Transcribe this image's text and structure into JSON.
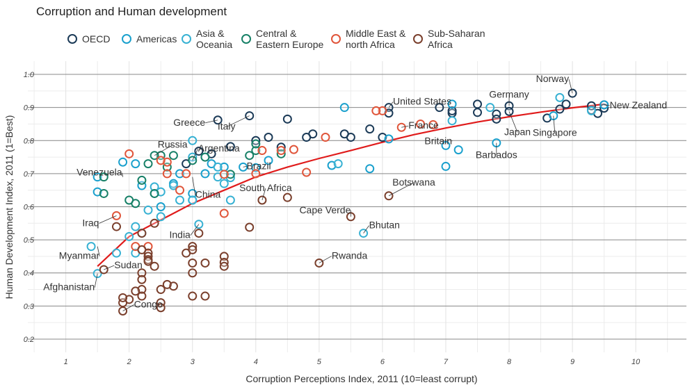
{
  "chart_data": {
    "type": "scatter",
    "title": "Corruption and Human development",
    "xlabel": "Corruption Perceptions Index, 2011 (10=least corrupt)",
    "ylabel": "Human Development Index, 2011 (1=Best)",
    "xlim": [
      0.4,
      10.8
    ],
    "ylim": [
      0.16,
      1.04
    ],
    "x_ticks": [
      1,
      2,
      3,
      4,
      5,
      6,
      7,
      8,
      9,
      10
    ],
    "y_ticks": [
      0.2,
      0.3,
      0.4,
      0.5,
      0.6,
      0.7,
      0.8,
      0.9,
      1.0
    ],
    "y_tick_labels": [
      "0.2",
      "0.3",
      "0.4",
      "0.5",
      "0.6",
      "0.7",
      "0.8",
      "0.9",
      "1.0"
    ],
    "grid": true,
    "legend_position": "top",
    "legend": [
      {
        "key": "OECD",
        "label": [
          "OECD"
        ],
        "color": "#1b3a57"
      },
      {
        "key": "Americas",
        "label": [
          "Americas"
        ],
        "color": "#1aa0cd"
      },
      {
        "key": "Asia",
        "label": [
          "Asia &",
          "Oceania"
        ],
        "color": "#37b1d3"
      },
      {
        "key": "CEE",
        "label": [
          "Central &",
          "Eastern Europe"
        ],
        "color": "#178067"
      },
      {
        "key": "MENA",
        "label": [
          "Middle East &",
          "north Africa"
        ],
        "color": "#e0553a"
      },
      {
        "key": "SSA",
        "label": [
          "Sub-Saharan",
          "Africa"
        ],
        "color": "#7a3f2c"
      }
    ],
    "trend_line": {
      "color": "#e01b1b",
      "points": [
        [
          1.5,
          0.42
        ],
        [
          2,
          0.51
        ],
        [
          2.5,
          0.56
        ],
        [
          3,
          0.61
        ],
        [
          3.5,
          0.65
        ],
        [
          4,
          0.69
        ],
        [
          4.5,
          0.72
        ],
        [
          5,
          0.746
        ],
        [
          5.5,
          0.77
        ],
        [
          6,
          0.795
        ],
        [
          6.5,
          0.818
        ],
        [
          7,
          0.838
        ],
        [
          7.5,
          0.856
        ],
        [
          8,
          0.872
        ],
        [
          8.5,
          0.886
        ],
        [
          9,
          0.899
        ],
        [
          9.5,
          0.91
        ]
      ]
    },
    "series": [
      {
        "name": "OECD",
        "points": [
          [
            9.5,
            0.908
          ],
          [
            9.5,
            0.898
          ],
          [
            9.4,
            0.882
          ],
          [
            9.3,
            0.892
          ],
          [
            9.0,
            0.943
          ],
          [
            9.3,
            0.905
          ],
          [
            8.9,
            0.91
          ],
          [
            8.8,
            0.895
          ],
          [
            8.6,
            0.868
          ],
          [
            8.0,
            0.905
          ],
          [
            8.0,
            0.888
          ],
          [
            7.8,
            0.88
          ],
          [
            7.8,
            0.865
          ],
          [
            7.5,
            0.91
          ],
          [
            7.5,
            0.885
          ],
          [
            7.1,
            0.883
          ],
          [
            7.1,
            0.89
          ],
          [
            6.9,
            0.9
          ],
          [
            6.1,
            0.9
          ],
          [
            6.1,
            0.883
          ],
          [
            6.0,
            0.81
          ],
          [
            5.8,
            0.835
          ],
          [
            5.5,
            0.81
          ],
          [
            5.4,
            0.82
          ],
          [
            4.9,
            0.82
          ],
          [
            4.8,
            0.81
          ],
          [
            4.5,
            0.865
          ],
          [
            4.4,
            0.78
          ],
          [
            4.2,
            0.81
          ],
          [
            4.0,
            0.8
          ],
          [
            3.9,
            0.875
          ],
          [
            3.6,
            0.782
          ],
          [
            3.4,
            0.862
          ],
          [
            3.3,
            0.76
          ],
          [
            3.1,
            0.768
          ],
          [
            2.9,
            0.73
          ]
        ]
      },
      {
        "name": "Americas",
        "points": [
          [
            9.5,
            0.908
          ],
          [
            8.7,
            0.875
          ],
          [
            7.8,
            0.793
          ],
          [
            7.2,
            0.772
          ],
          [
            7.0,
            0.785
          ],
          [
            7.0,
            0.722
          ],
          [
            7.1,
            0.91
          ],
          [
            6.1,
            0.805
          ],
          [
            5.8,
            0.715
          ],
          [
            5.4,
            0.9
          ],
          [
            5.2,
            0.725
          ],
          [
            4.2,
            0.74
          ],
          [
            4.0,
            0.718
          ],
          [
            3.8,
            0.72
          ],
          [
            3.5,
            0.72
          ],
          [
            3.3,
            0.73
          ],
          [
            3.2,
            0.7
          ],
          [
            3.0,
            0.64
          ],
          [
            3.0,
            0.62
          ],
          [
            2.8,
            0.7
          ],
          [
            2.7,
            0.67
          ],
          [
            2.5,
            0.6
          ],
          [
            2.4,
            0.64
          ],
          [
            2.2,
            0.664
          ],
          [
            2.1,
            0.73
          ],
          [
            1.9,
            0.735
          ],
          [
            1.5,
            0.69
          ],
          [
            1.5,
            0.645
          ]
        ]
      },
      {
        "name": "Asia",
        "points": [
          [
            9.3,
            0.89
          ],
          [
            8.8,
            0.93
          ],
          [
            7.7,
            0.9
          ],
          [
            7.1,
            0.86
          ],
          [
            5.7,
            0.52
          ],
          [
            5.3,
            0.73
          ],
          [
            3.6,
            0.62
          ],
          [
            3.6,
            0.688
          ],
          [
            3.5,
            0.67
          ],
          [
            3.4,
            0.72
          ],
          [
            3.4,
            0.69
          ],
          [
            3.2,
            0.75
          ],
          [
            3.0,
            0.8
          ],
          [
            3.0,
            0.75
          ],
          [
            3.0,
            0.62
          ],
          [
            2.8,
            0.62
          ],
          [
            2.7,
            0.664
          ],
          [
            2.5,
            0.57
          ],
          [
            2.5,
            0.645
          ],
          [
            2.4,
            0.66
          ],
          [
            2.3,
            0.59
          ],
          [
            2.2,
            0.52
          ],
          [
            2.1,
            0.54
          ],
          [
            2.1,
            0.46
          ],
          [
            2.0,
            0.51
          ],
          [
            1.8,
            0.46
          ],
          [
            1.5,
            0.398
          ],
          [
            1.4,
            0.48
          ],
          [
            3.1,
            0.547
          ]
        ]
      },
      {
        "name": "CEE",
        "points": [
          [
            4.4,
            0.76
          ],
          [
            4.0,
            0.77
          ],
          [
            4.0,
            0.79
          ],
          [
            3.9,
            0.755
          ],
          [
            3.6,
            0.698
          ],
          [
            3.2,
            0.75
          ],
          [
            3.0,
            0.74
          ],
          [
            2.7,
            0.755
          ],
          [
            2.6,
            0.72
          ],
          [
            2.5,
            0.755
          ],
          [
            2.4,
            0.755
          ],
          [
            2.4,
            0.64
          ],
          [
            2.3,
            0.73
          ],
          [
            2.2,
            0.68
          ],
          [
            2.1,
            0.61
          ],
          [
            2.0,
            0.62
          ],
          [
            1.6,
            0.64
          ],
          [
            1.6,
            0.69
          ]
        ]
      },
      {
        "name": "MENA",
        "points": [
          [
            6.8,
            0.848
          ],
          [
            6.6,
            0.85
          ],
          [
            6.3,
            0.84
          ],
          [
            6.0,
            0.89
          ],
          [
            5.9,
            0.89
          ],
          [
            5.1,
            0.81
          ],
          [
            4.8,
            0.704
          ],
          [
            4.6,
            0.773
          ],
          [
            4.4,
            0.77
          ],
          [
            4.1,
            0.77
          ],
          [
            4.0,
            0.7
          ],
          [
            3.5,
            0.58
          ],
          [
            3.5,
            0.698
          ],
          [
            2.9,
            0.7
          ],
          [
            2.8,
            0.65
          ],
          [
            2.6,
            0.735
          ],
          [
            2.5,
            0.74
          ],
          [
            2.1,
            0.48
          ],
          [
            2.0,
            0.76
          ],
          [
            1.8,
            0.573
          ],
          [
            2.3,
            0.48
          ],
          [
            2.6,
            0.7
          ]
        ]
      },
      {
        "name": "SSA",
        "points": [
          [
            6.1,
            0.633
          ],
          [
            5.5,
            0.57
          ],
          [
            5.0,
            0.43
          ],
          [
            4.5,
            0.628
          ],
          [
            4.1,
            0.62
          ],
          [
            3.9,
            0.538
          ],
          [
            3.5,
            0.45
          ],
          [
            3.5,
            0.432
          ],
          [
            3.2,
            0.43
          ],
          [
            3.1,
            0.52
          ],
          [
            3.0,
            0.48
          ],
          [
            3.0,
            0.47
          ],
          [
            3.0,
            0.43
          ],
          [
            3.0,
            0.4
          ],
          [
            3.0,
            0.33
          ],
          [
            2.9,
            0.46
          ],
          [
            2.7,
            0.36
          ],
          [
            2.6,
            0.365
          ],
          [
            2.4,
            0.55
          ],
          [
            2.4,
            0.42
          ],
          [
            2.3,
            0.46
          ],
          [
            2.3,
            0.45
          ],
          [
            2.3,
            0.44
          ],
          [
            2.3,
            0.435
          ],
          [
            2.2,
            0.52
          ],
          [
            2.2,
            0.47
          ],
          [
            2.2,
            0.4
          ],
          [
            2.2,
            0.35
          ],
          [
            2.1,
            0.345
          ],
          [
            2.0,
            0.32
          ],
          [
            1.9,
            0.31
          ],
          [
            1.9,
            0.285
          ],
          [
            1.8,
            0.54
          ],
          [
            1.6,
            0.41
          ],
          [
            2.5,
            0.35
          ],
          [
            2.5,
            0.31
          ],
          [
            2.5,
            0.295
          ],
          [
            3.2,
            0.33
          ],
          [
            2.2,
            0.38
          ],
          [
            2.2,
            0.33
          ],
          [
            1.9,
            0.325
          ],
          [
            3.5,
            0.42
          ]
        ]
      }
    ],
    "annotations": [
      {
        "text": "Norway",
        "x": 9.0,
        "y": 0.943,
        "anchor": "end",
        "dx": -5,
        "dy": -16
      },
      {
        "text": "Germany",
        "x": 8.0,
        "y": 0.905,
        "anchor": "middle",
        "dx": 0,
        "dy": -12
      },
      {
        "text": "New Zealand",
        "x": 9.5,
        "y": 0.908,
        "anchor": "start",
        "dx": 8,
        "dy": 5
      },
      {
        "text": "United States",
        "x": 6.1,
        "y": 0.9,
        "anchor": "start",
        "dx": 6,
        "dy": -4
      },
      {
        "text": "France",
        "x": 6.3,
        "y": 0.84,
        "anchor": "start",
        "dx": 10,
        "dy": 2
      },
      {
        "text": "Britain",
        "x": 7.1,
        "y": 0.8,
        "anchor": "end",
        "dx": 0,
        "dy": 5
      },
      {
        "text": "Japan",
        "x": 8.0,
        "y": 0.888,
        "anchor": "middle",
        "dx": 12,
        "dy": 34
      },
      {
        "text": "Singapore",
        "x": 8.7,
        "y": 0.875,
        "anchor": "middle",
        "dx": 2,
        "dy": 29
      },
      {
        "text": "Barbados",
        "x": 7.8,
        "y": 0.793,
        "anchor": "middle",
        "dx": 0,
        "dy": 22
      },
      {
        "text": "Greece",
        "x": 3.4,
        "y": 0.862,
        "anchor": "end",
        "dx": -18,
        "dy": 8
      },
      {
        "text": "Italy",
        "x": 3.9,
        "y": 0.875,
        "anchor": "middle",
        "dx": -33,
        "dy": 20
      },
      {
        "text": "Russia",
        "x": 2.4,
        "y": 0.755,
        "anchor": "middle",
        "dx": 26,
        "dy": -11
      },
      {
        "text": "Argentina",
        "x": 3.0,
        "y": 0.74,
        "anchor": "start",
        "dx": 8,
        "dy": -13
      },
      {
        "text": "Brazil",
        "x": 3.8,
        "y": 0.72,
        "anchor": "start",
        "dx": 5,
        "dy": 3
      },
      {
        "text": "Venezuela",
        "x": 1.9,
        "y": 0.69,
        "anchor": "end",
        "dx": -1,
        "dy": -2
      },
      {
        "text": "China",
        "x": 3.0,
        "y": 0.69,
        "anchor": "start",
        "dx": 4,
        "dy": 30
      },
      {
        "text": "South Africa",
        "x": 4.1,
        "y": 0.62,
        "anchor": "middle",
        "dx": 5,
        "dy": -13
      },
      {
        "text": "Botswana",
        "x": 6.1,
        "y": 0.633,
        "anchor": "middle",
        "dx": 36,
        "dy": -15
      },
      {
        "text": "Cape Verde",
        "x": 5.5,
        "y": 0.57,
        "anchor": "end",
        "dx": 0,
        "dy": -5
      },
      {
        "text": "Bhutan",
        "x": 5.7,
        "y": 0.52,
        "anchor": "start",
        "dx": 8,
        "dy": -7
      },
      {
        "text": "Iraq",
        "x": 1.8,
        "y": 0.573,
        "anchor": "end",
        "dx": -25,
        "dy": 15
      },
      {
        "text": "India",
        "x": 3.1,
        "y": 0.547,
        "anchor": "end",
        "dx": -12,
        "dy": 20
      },
      {
        "text": "Myanmar",
        "x": 1.5,
        "y": 0.48,
        "anchor": "end",
        "dx": 3,
        "dy": 18
      },
      {
        "text": "Sudan",
        "x": 1.6,
        "y": 0.41,
        "anchor": "start",
        "dx": 15,
        "dy": -2
      },
      {
        "text": "Afghanistan",
        "x": 1.5,
        "y": 0.398,
        "anchor": "end",
        "dx": -4,
        "dy": 24
      },
      {
        "text": "Rwanda",
        "x": 5.0,
        "y": 0.43,
        "anchor": "start",
        "dx": 18,
        "dy": -6
      },
      {
        "text": "Congo",
        "x": 1.9,
        "y": 0.285,
        "anchor": "start",
        "dx": 16,
        "dy": -5
      }
    ]
  }
}
